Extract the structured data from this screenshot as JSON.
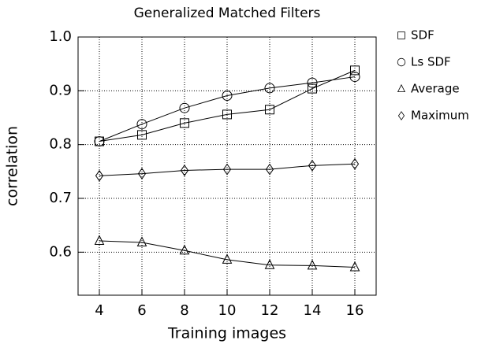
{
  "chart_data": {
    "type": "line",
    "title": "Generalized Matched Filters",
    "xlabel": "Training images",
    "ylabel": "correlation",
    "x": [
      4,
      6,
      8,
      10,
      12,
      14,
      16
    ],
    "series": [
      {
        "name": "SDF",
        "color": "#000000",
        "marker": "square",
        "values": [
          0.806,
          0.818,
          0.84,
          0.856,
          0.865,
          0.904,
          0.938
        ]
      },
      {
        "name": "Ls SDF",
        "color": "#000000",
        "marker": "circle",
        "values": [
          0.806,
          0.838,
          0.868,
          0.891,
          0.905,
          0.915,
          0.926
        ]
      },
      {
        "name": "Average",
        "color": "#000000",
        "marker": "triangle",
        "values": [
          0.621,
          0.618,
          0.603,
          0.586,
          0.576,
          0.575,
          0.572
        ]
      },
      {
        "name": "Maximum",
        "color": "#000000",
        "marker": "diamond",
        "values": [
          0.742,
          0.746,
          0.752,
          0.754,
          0.754,
          0.761,
          0.764
        ]
      }
    ],
    "xlim": [
      3,
      17
    ],
    "ylim": [
      0.52,
      1.0
    ],
    "xticks": [
      4,
      6,
      8,
      10,
      12,
      14,
      16
    ],
    "yticks": [
      0.6,
      0.7,
      0.8,
      0.9,
      {
        "value": 1,
        "label": "1.0"
      }
    ],
    "grid": true,
    "legend": "right"
  }
}
